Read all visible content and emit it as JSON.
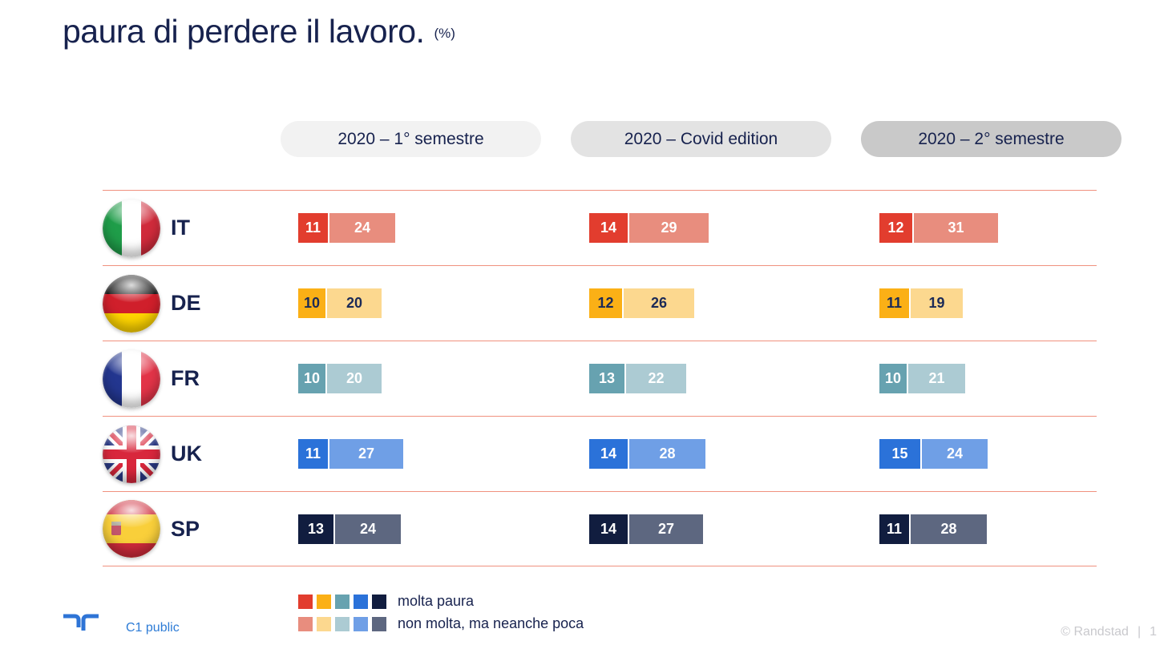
{
  "title": {
    "text": "paura di perdere il lavoro.",
    "unit": "(%)"
  },
  "columns": [
    {
      "label": "2020 – 1° semestre",
      "bg": "#f2f2f2"
    },
    {
      "label": "2020 – Covid edition",
      "bg": "#e3e3e3"
    },
    {
      "label": "2020 – 2° semestre",
      "bg": "#c9c9c9"
    }
  ],
  "chart_data": {
    "type": "bar",
    "orientation": "horizontal",
    "unit": "%",
    "title": "paura di perdere il lavoro. (%)",
    "categories": [
      "2020 – 1° semestre",
      "2020 – Covid edition",
      "2020 – 2° semestre"
    ],
    "segment_labels": [
      "molta paura",
      "non molta, ma neanche poca"
    ],
    "rows": [
      {
        "country": "IT",
        "flag": "italy",
        "colors": {
          "dark": "#e23d2e",
          "light": "#e88d7e",
          "text": "#ffffff"
        },
        "values": [
          [
            11,
            24
          ],
          [
            14,
            29
          ],
          [
            12,
            31
          ]
        ]
      },
      {
        "country": "DE",
        "flag": "germany",
        "colors": {
          "dark": "#fbb016",
          "light": "#fcd88f",
          "text": "#1b2a57"
        },
        "values": [
          [
            10,
            20
          ],
          [
            12,
            26
          ],
          [
            11,
            19
          ]
        ]
      },
      {
        "country": "FR",
        "flag": "france",
        "colors": {
          "dark": "#67a2b0",
          "light": "#accbd3",
          "text": "#ffffff"
        },
        "values": [
          [
            10,
            20
          ],
          [
            13,
            22
          ],
          [
            10,
            21
          ]
        ]
      },
      {
        "country": "UK",
        "flag": "uk",
        "colors": {
          "dark": "#2b72d9",
          "light": "#6f9fe6",
          "text": "#ffffff"
        },
        "values": [
          [
            11,
            27
          ],
          [
            14,
            28
          ],
          [
            15,
            24
          ]
        ]
      },
      {
        "country": "SP",
        "flag": "spain",
        "colors": {
          "dark": "#111d3f",
          "light": "#5d6780",
          "text": "#ffffff"
        },
        "values": [
          [
            13,
            24
          ],
          [
            14,
            27
          ],
          [
            11,
            28
          ]
        ]
      }
    ]
  },
  "legend": [
    {
      "label": "molta paura",
      "swatches": [
        "#e23d2e",
        "#fbb016",
        "#67a2b0",
        "#2b72d9",
        "#111d3f"
      ]
    },
    {
      "label": "non molta, ma neanche poca",
      "swatches": [
        "#e88d7e",
        "#fcd88f",
        "#accbd3",
        "#6f9fe6",
        "#5d6780"
      ]
    }
  ],
  "footer": {
    "classification": "C1 public",
    "copyright": "© Randstad",
    "separator": "|",
    "page": "1"
  }
}
